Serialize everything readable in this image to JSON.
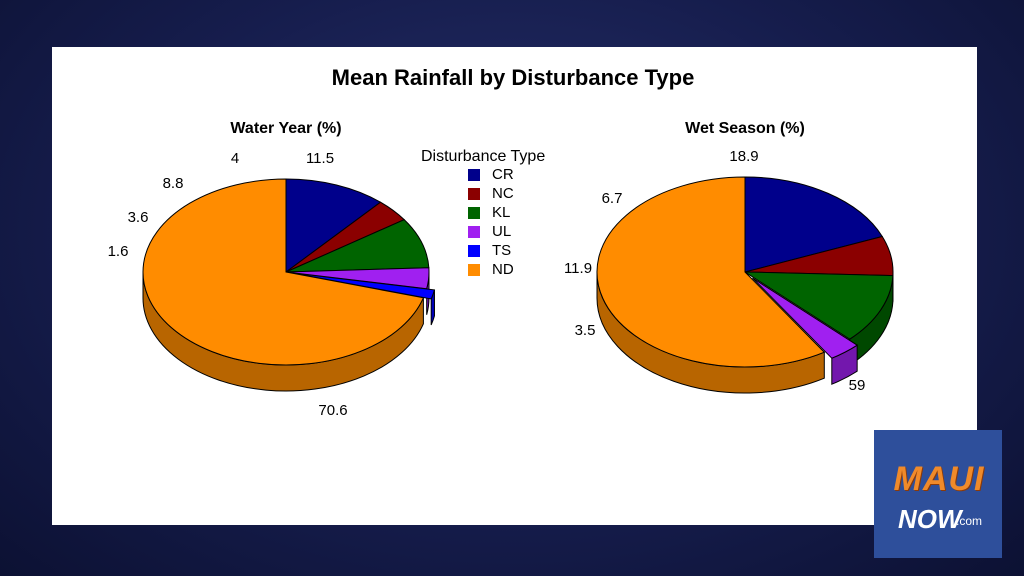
{
  "chart_data": {
    "type": "pie",
    "title": "Mean Rainfall by Disturbance Type",
    "legend": {
      "title": "Disturbance Type",
      "placement": "center",
      "entries": [
        {
          "label": "CR",
          "color": "#00008b"
        },
        {
          "label": "NC",
          "color": "#8b0000"
        },
        {
          "label": "KL",
          "color": "#006400"
        },
        {
          "label": "UL",
          "color": "#a020f0"
        },
        {
          "label": "TS",
          "color": "#0000ff"
        },
        {
          "label": "ND",
          "color": "#ff8c00"
        }
      ]
    },
    "charts": [
      {
        "title": "Water Year (%)",
        "slices": [
          {
            "category": "CR",
            "value": 11.5
          },
          {
            "category": "NC",
            "value": 4
          },
          {
            "category": "KL",
            "value": 8.8
          },
          {
            "category": "UL",
            "value": 3.6
          },
          {
            "category": "TS",
            "value": 1.6
          },
          {
            "category": "ND",
            "value": 70.6
          }
        ]
      },
      {
        "title": "Wet Season (%)",
        "slices": [
          {
            "category": "CR",
            "value": 18.9
          },
          {
            "category": "NC",
            "value": 6.7
          },
          {
            "category": "KL",
            "value": 11.9
          },
          {
            "category": "UL",
            "value": 3.5
          },
          {
            "category": "ND",
            "value": 59
          }
        ]
      }
    ]
  },
  "logo": {
    "maui": "MAUI",
    "now": "NOW",
    "dotcom": ".com"
  }
}
